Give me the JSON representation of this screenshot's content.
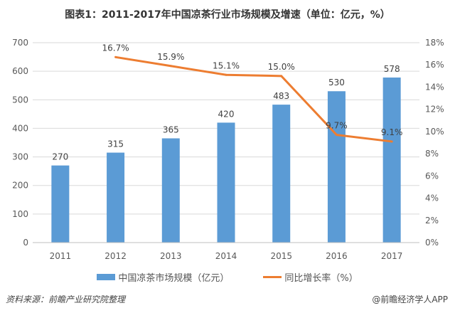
{
  "chart_data": {
    "type": "bar+line",
    "title": "图表1：2011-2017年中国凉茶行业市场规模及增速（单位：亿元，%）",
    "categories": [
      "2011",
      "2012",
      "2013",
      "2014",
      "2015",
      "2016",
      "2017"
    ],
    "series": [
      {
        "name": "中国凉茶市场规模（亿元）",
        "type": "bar",
        "axis": "left",
        "color": "#5b9bd5",
        "values": [
          270,
          315,
          365,
          420,
          483,
          530,
          578
        ]
      },
      {
        "name": "同比增长率（%）",
        "type": "line",
        "axis": "right",
        "color": "#ed7d31",
        "values": [
          null,
          16.7,
          15.9,
          15.1,
          15.0,
          9.7,
          9.1
        ]
      }
    ],
    "left_axis": {
      "ylim": [
        0,
        700
      ],
      "ticks": [
        "0",
        "100",
        "200",
        "300",
        "400",
        "500",
        "600",
        "700"
      ]
    },
    "right_axis": {
      "ylim": [
        0,
        18
      ],
      "ticks": [
        "0%",
        "2%",
        "4%",
        "6%",
        "8%",
        "10%",
        "12%",
        "14%",
        "16%",
        "18%"
      ]
    },
    "grid": true,
    "legend": "bottom"
  },
  "footer": {
    "source": "资料来源：前瞻产业研究院整理",
    "credit": "@前瞻经济学人APP"
  }
}
